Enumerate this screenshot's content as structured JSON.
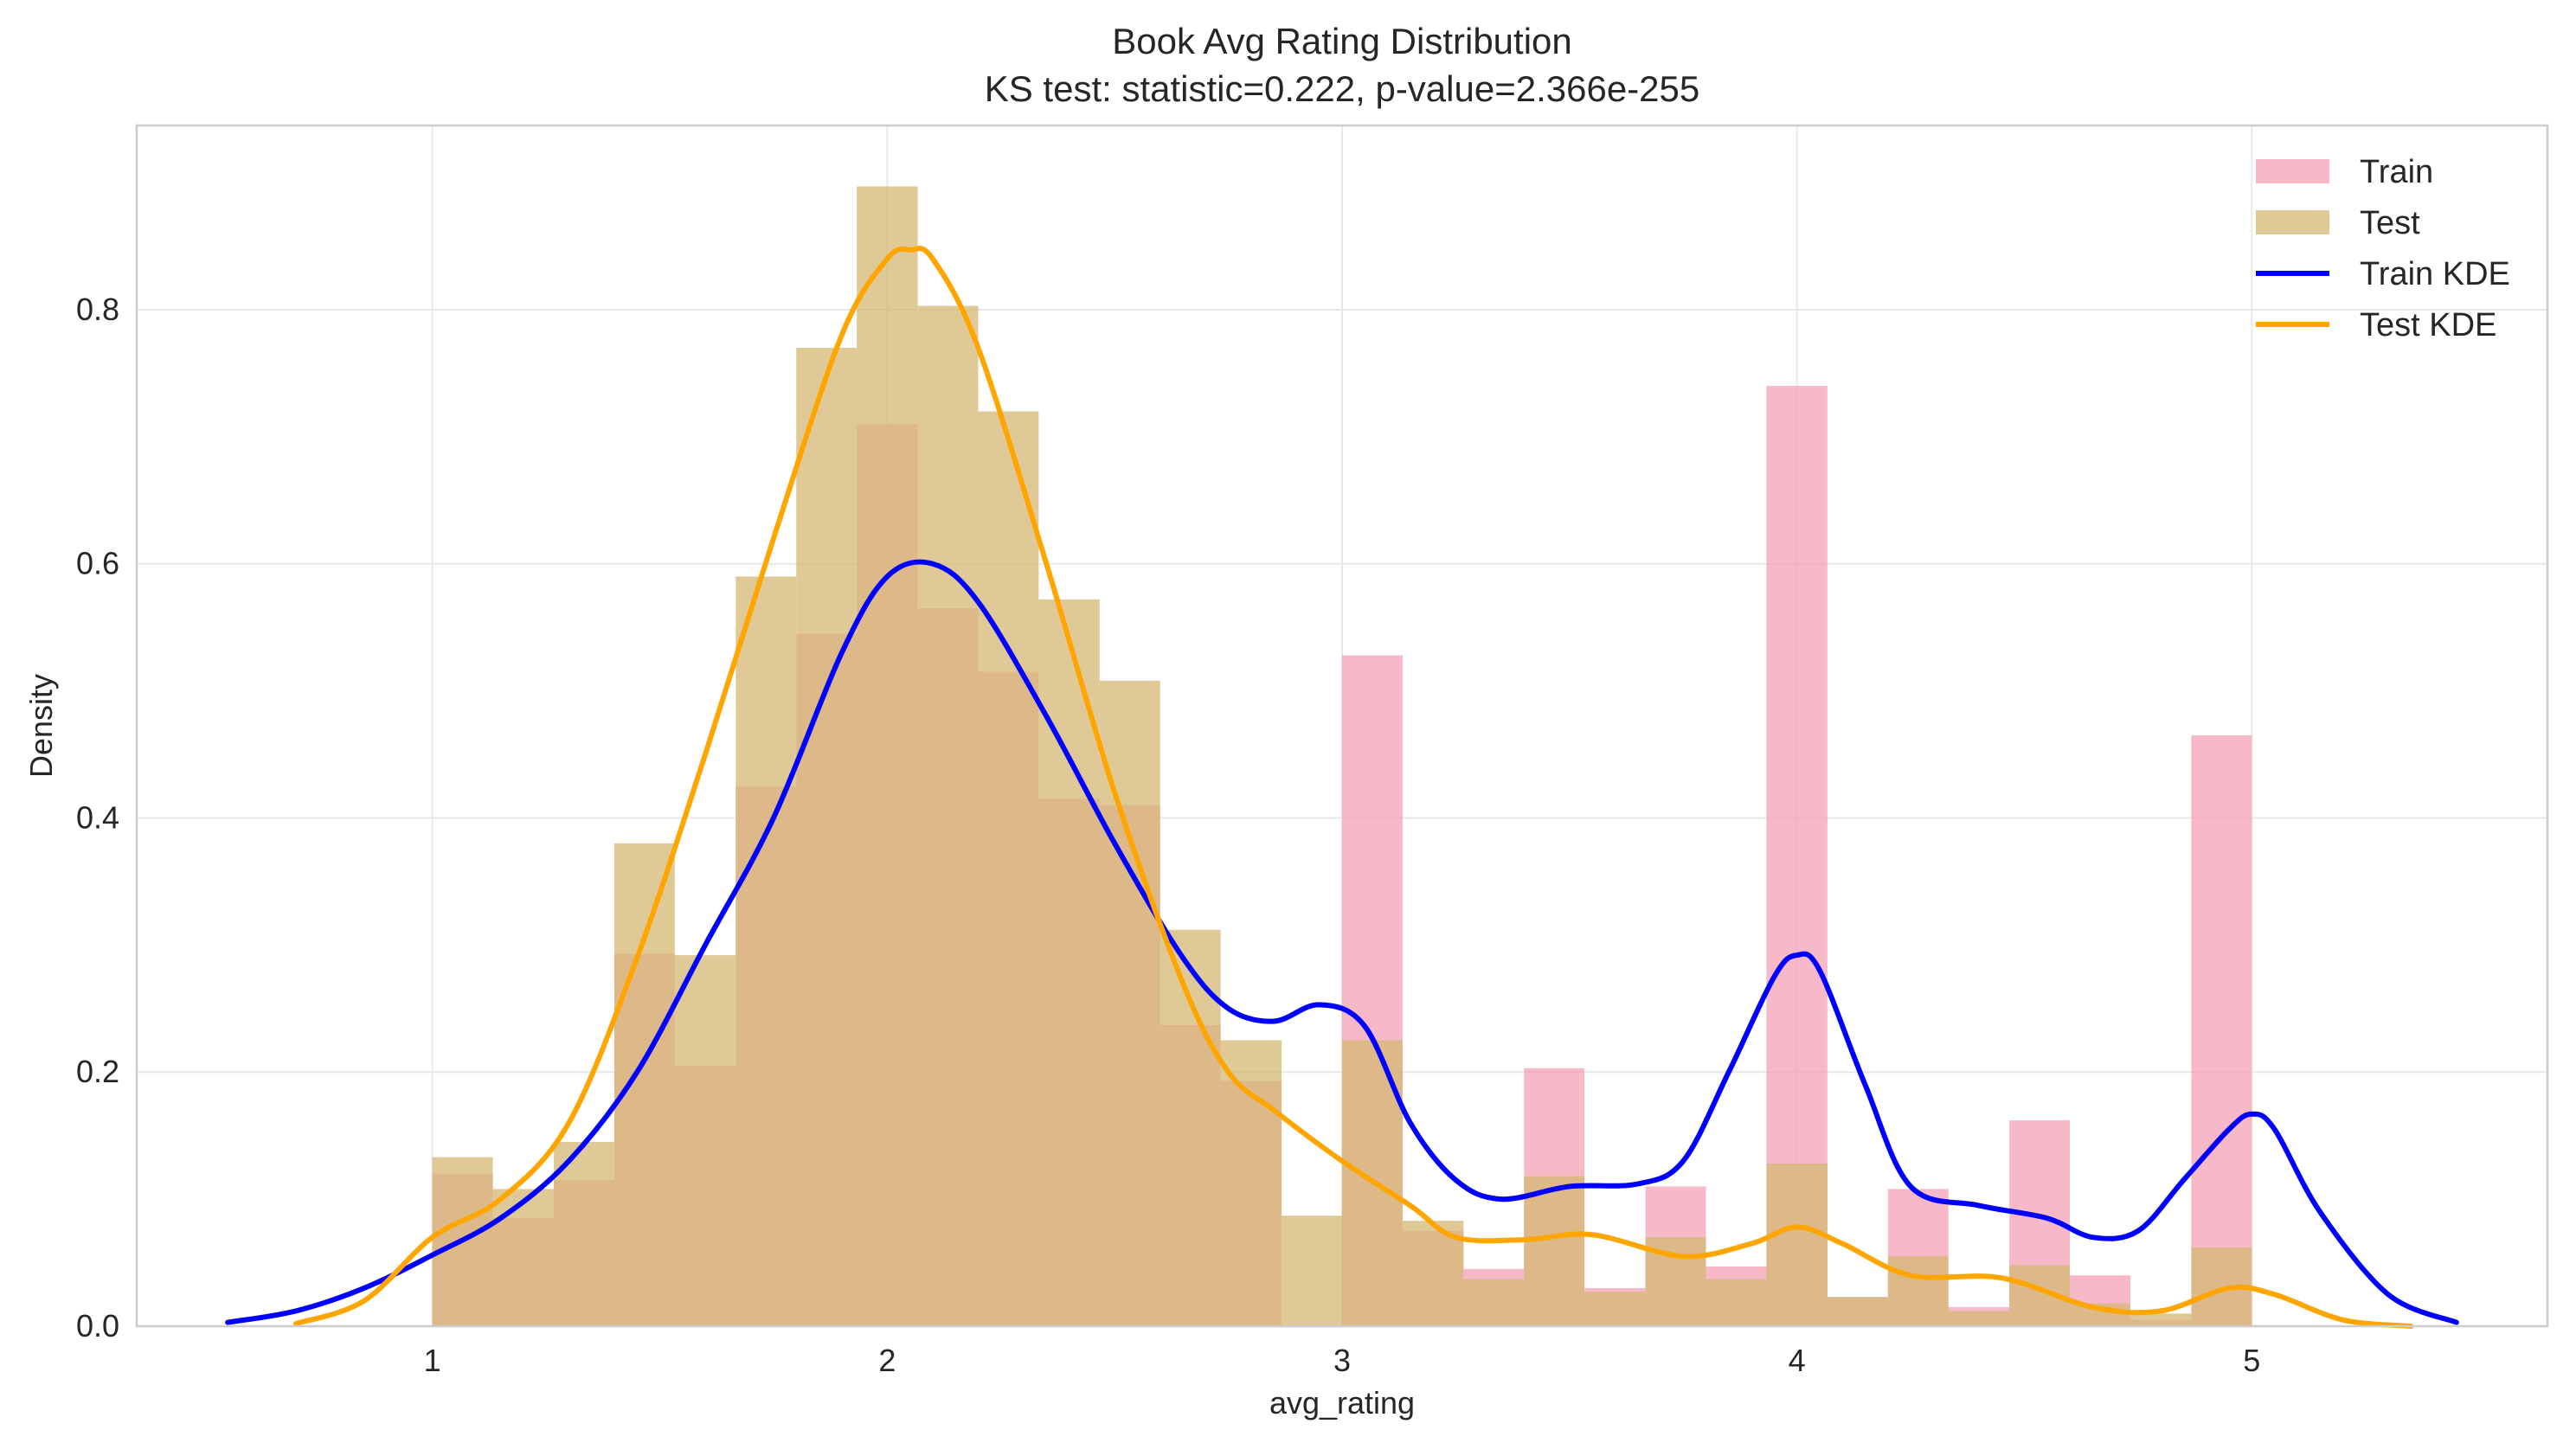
{
  "chart_data": {
    "type": "histogram-kde",
    "title": "Book Avg Rating Distribution",
    "subtitle": "KS test: statistic=0.222, p-value=2.366e-255",
    "xlabel": "avg_rating",
    "ylabel": "Density",
    "xlim": [
      0.35,
      5.65
    ],
    "ylim": [
      0.0,
      0.945
    ],
    "xticks": [
      1,
      2,
      3,
      4,
      5
    ],
    "yticks": [
      0.0,
      0.2,
      0.4,
      0.6,
      0.8
    ],
    "ytick_labels": [
      "0.0",
      "0.2",
      "0.4",
      "0.6",
      "0.8"
    ],
    "grid": true,
    "legend_position": "upper right",
    "bin_edges": [
      1.0,
      1.133,
      1.267,
      1.4,
      1.533,
      1.667,
      1.8,
      1.933,
      2.067,
      2.2,
      2.333,
      2.467,
      2.6,
      2.733,
      2.867,
      3.0,
      3.133,
      3.267,
      3.4,
      3.533,
      3.667,
      3.8,
      3.933,
      4.067,
      4.2,
      4.333,
      4.467,
      4.6,
      4.733,
      4.867,
      5.0
    ],
    "series": [
      {
        "name": "Train",
        "kind": "histogram",
        "color": "#f4a0b4",
        "values": [
          0.12,
          0.085,
          0.115,
          0.293,
          0.205,
          0.425,
          0.545,
          0.71,
          0.565,
          0.515,
          0.415,
          0.41,
          0.237,
          0.193,
          0.0,
          0.528,
          0.075,
          0.045,
          0.203,
          0.03,
          0.11,
          0.047,
          0.74,
          0.023,
          0.108,
          0.015,
          0.162,
          0.04,
          0.005,
          0.465
        ]
      },
      {
        "name": "Test",
        "kind": "histogram",
        "color": "#d4b874",
        "values": [
          0.133,
          0.108,
          0.145,
          0.38,
          0.292,
          0.59,
          0.77,
          0.897,
          0.803,
          0.72,
          0.572,
          0.508,
          0.312,
          0.225,
          0.087,
          0.225,
          0.083,
          0.037,
          0.118,
          0.027,
          0.07,
          0.037,
          0.128,
          0.023,
          0.055,
          0.012,
          0.048,
          0.018,
          0.01,
          0.062
        ]
      },
      {
        "name": "Train KDE",
        "kind": "line",
        "color": "#0000ff",
        "x": [
          0.55,
          0.7,
          0.85,
          1.0,
          1.15,
          1.3,
          1.45,
          1.6,
          1.75,
          1.9,
          2.0,
          2.1,
          2.2,
          2.35,
          2.5,
          2.65,
          2.75,
          2.85,
          2.95,
          3.05,
          3.15,
          3.25,
          3.35,
          3.5,
          3.65,
          3.75,
          3.85,
          3.95,
          4.0,
          4.05,
          4.15,
          4.25,
          4.4,
          4.55,
          4.65,
          4.75,
          4.85,
          4.95,
          5.0,
          5.05,
          5.15,
          5.3,
          5.45
        ],
        "y": [
          0.003,
          0.012,
          0.03,
          0.056,
          0.085,
          0.13,
          0.2,
          0.3,
          0.4,
          0.53,
          0.59,
          0.6,
          0.57,
          0.48,
          0.38,
          0.29,
          0.25,
          0.24,
          0.253,
          0.236,
          0.16,
          0.115,
          0.1,
          0.11,
          0.112,
          0.13,
          0.2,
          0.275,
          0.292,
          0.28,
          0.19,
          0.11,
          0.095,
          0.085,
          0.07,
          0.075,
          0.115,
          0.155,
          0.167,
          0.155,
          0.09,
          0.025,
          0.003
        ]
      },
      {
        "name": "Test KDE",
        "kind": "line",
        "color": "#ffa500",
        "x": [
          0.7,
          0.85,
          1.0,
          1.15,
          1.3,
          1.45,
          1.6,
          1.75,
          1.9,
          2.0,
          2.05,
          2.1,
          2.2,
          2.35,
          2.5,
          2.65,
          2.75,
          2.85,
          3.0,
          3.15,
          3.25,
          3.4,
          3.55,
          3.75,
          3.9,
          4.0,
          4.1,
          4.25,
          4.45,
          4.65,
          4.8,
          4.95,
          5.05,
          5.2,
          5.35
        ],
        "y": [
          0.002,
          0.02,
          0.07,
          0.1,
          0.16,
          0.29,
          0.45,
          0.62,
          0.78,
          0.84,
          0.847,
          0.84,
          0.77,
          0.6,
          0.42,
          0.27,
          0.2,
          0.17,
          0.13,
          0.095,
          0.07,
          0.068,
          0.072,
          0.055,
          0.065,
          0.078,
          0.065,
          0.04,
          0.038,
          0.015,
          0.012,
          0.03,
          0.025,
          0.005,
          0.0
        ]
      }
    ]
  }
}
